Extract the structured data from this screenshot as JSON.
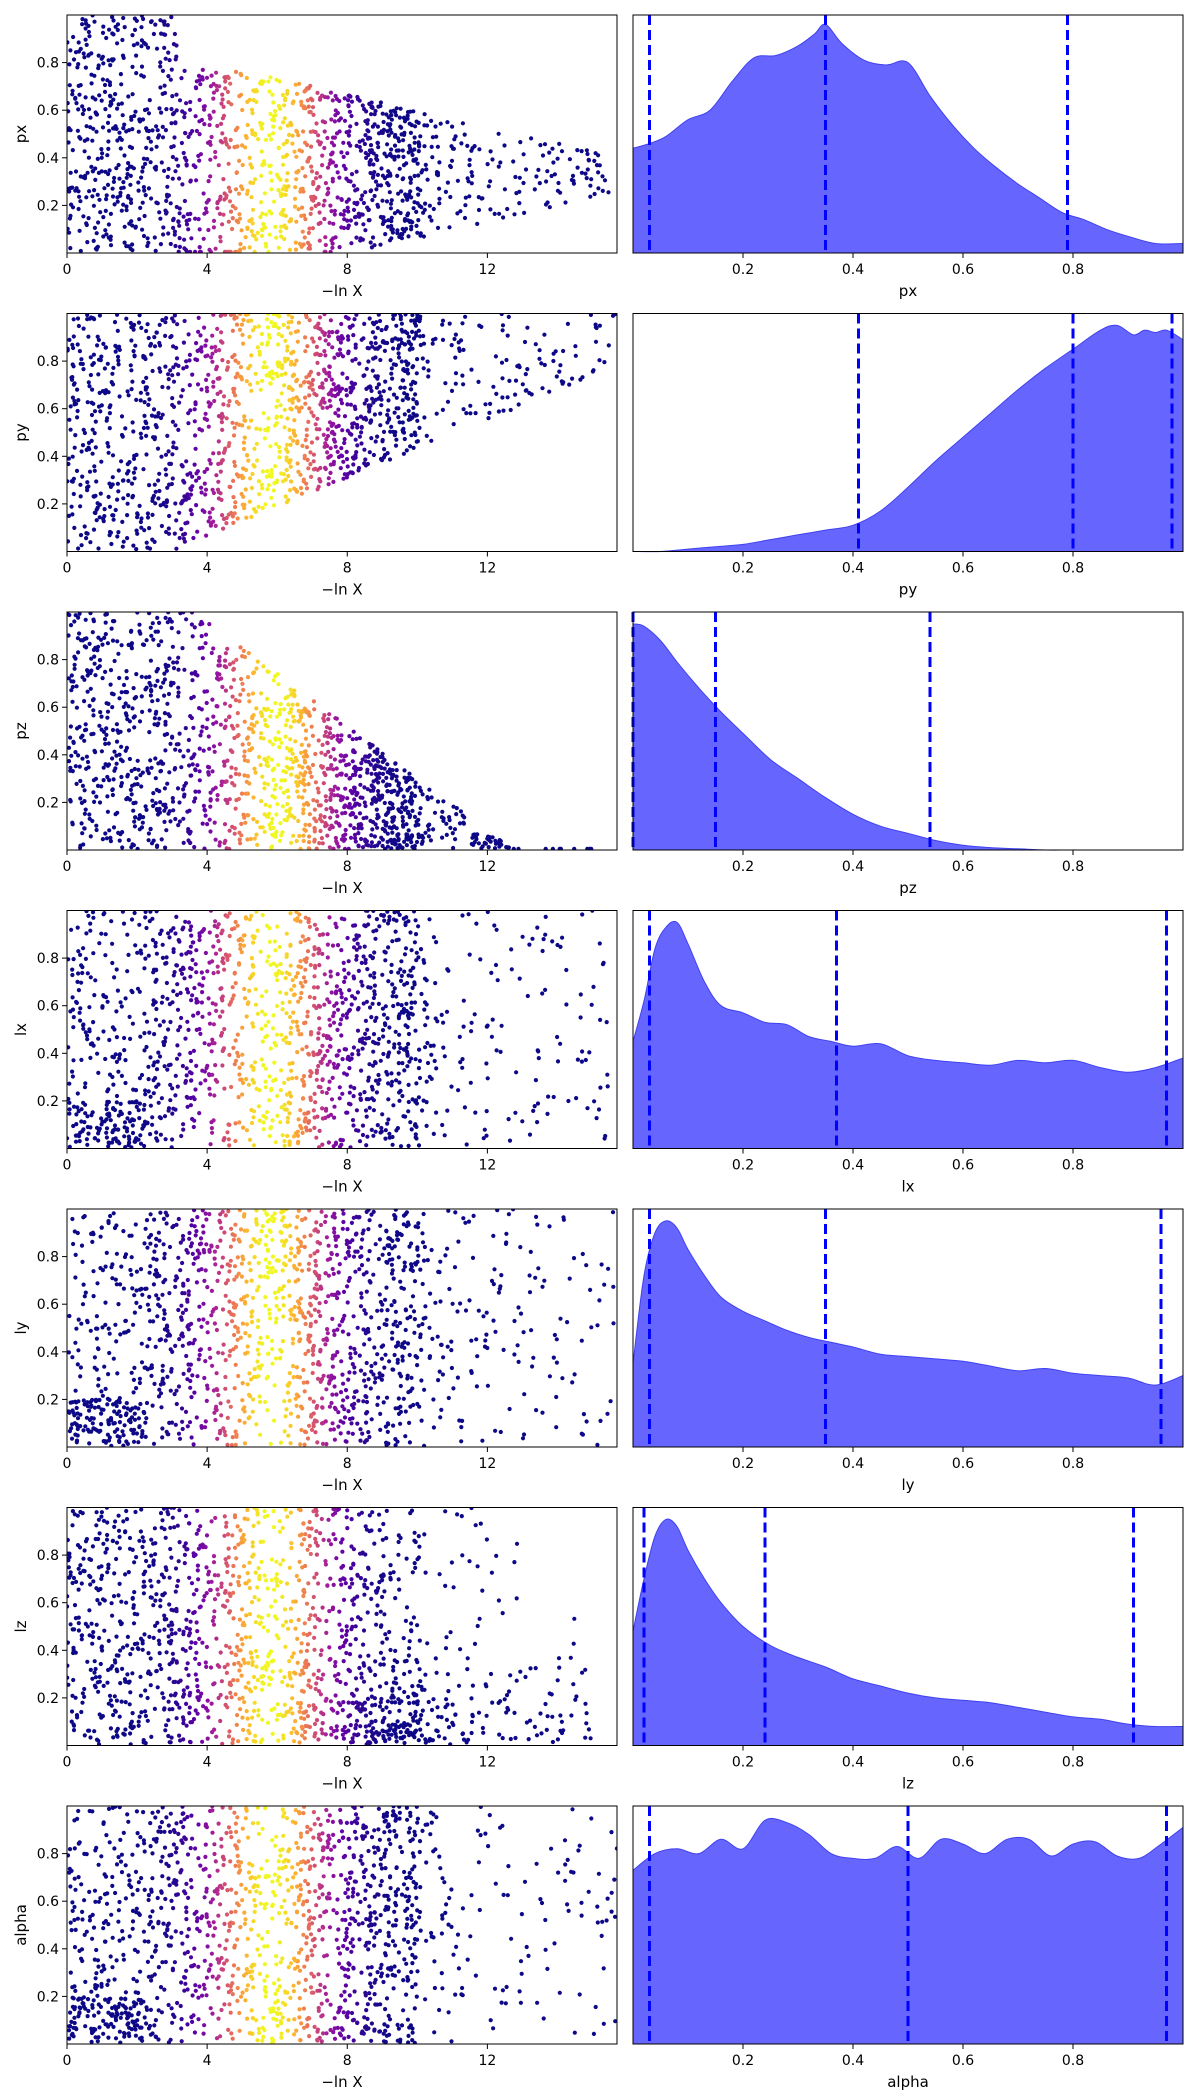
{
  "colors": {
    "kde_fill": "#6666ff",
    "kde_edge": "#4040f0",
    "quantile_line": "#0000ff",
    "trace_colormap": [
      "#0d0887",
      "#5c01a6",
      "#9c179e",
      "#cc4778",
      "#ed7953",
      "#fdb42f",
      "#f0f921"
    ]
  },
  "trace_common": {
    "xlabel": "−ln X",
    "xticks": [
      0,
      4,
      8,
      12
    ],
    "xlim": [
      0,
      15.7
    ],
    "ylim": [
      0,
      1
    ],
    "yticks": [
      0.2,
      0.4,
      0.6,
      0.8
    ]
  },
  "chart_data": [
    {
      "type": "scatter",
      "param": "px",
      "xlabel": "−ln X",
      "ylabel": "px",
      "shape": "cone_center",
      "center": 0.33,
      "width_end": 0.08,
      "tail": 15.5,
      "color_peak": 5.8
    },
    {
      "type": "area",
      "param": "px",
      "xlabel": "px",
      "xticks": [
        0.2,
        0.4,
        0.6,
        0.8
      ],
      "xlim": [
        0,
        1
      ],
      "quantiles": [
        0.03,
        0.35,
        0.79
      ],
      "density": {
        "x": [
          0.0,
          0.03,
          0.06,
          0.1,
          0.14,
          0.18,
          0.22,
          0.26,
          0.3,
          0.33,
          0.35,
          0.38,
          0.42,
          0.46,
          0.5,
          0.54,
          0.58,
          0.62,
          0.66,
          0.7,
          0.74,
          0.78,
          0.82,
          0.86,
          0.9,
          0.95,
          1.0
        ],
        "y": [
          0.44,
          0.46,
          0.49,
          0.56,
          0.6,
          0.72,
          0.82,
          0.83,
          0.87,
          0.92,
          0.96,
          0.88,
          0.81,
          0.79,
          0.8,
          0.66,
          0.54,
          0.44,
          0.36,
          0.29,
          0.23,
          0.17,
          0.14,
          0.1,
          0.07,
          0.04,
          0.04
        ]
      }
    },
    {
      "type": "scatter",
      "param": "py",
      "xlabel": "−ln X",
      "ylabel": "py",
      "shape": "cone_top",
      "center": 0.9,
      "width_end": 0.08,
      "tail": 15.7,
      "color_peak": 5.8
    },
    {
      "type": "area",
      "param": "py",
      "xlabel": "py",
      "xticks": [
        0.2,
        0.4,
        0.6,
        0.8
      ],
      "xlim": [
        0,
        1
      ],
      "quantiles": [
        0.41,
        0.8,
        0.98
      ],
      "density": {
        "x": [
          0.0,
          0.05,
          0.1,
          0.15,
          0.2,
          0.25,
          0.3,
          0.35,
          0.4,
          0.45,
          0.5,
          0.55,
          0.6,
          0.65,
          0.7,
          0.75,
          0.8,
          0.85,
          0.88,
          0.91,
          0.93,
          0.95,
          0.97,
          1.0
        ],
        "y": [
          0.0,
          0.0,
          0.01,
          0.02,
          0.03,
          0.05,
          0.07,
          0.09,
          0.11,
          0.17,
          0.27,
          0.38,
          0.48,
          0.58,
          0.68,
          0.77,
          0.85,
          0.93,
          0.95,
          0.91,
          0.93,
          0.92,
          0.93,
          0.89
        ]
      }
    },
    {
      "type": "scatter",
      "param": "pz",
      "xlabel": "−ln X",
      "ylabel": "pz",
      "shape": "cone_bottom",
      "center": 0.03,
      "width_end": 0.06,
      "tail": 15.0,
      "color_peak": 6.0
    },
    {
      "type": "area",
      "param": "pz",
      "xlabel": "pz",
      "xticks": [
        0.2,
        0.4,
        0.6,
        0.8
      ],
      "xlim": [
        0,
        1
      ],
      "quantiles": [
        0.0,
        0.15,
        0.54
      ],
      "density": {
        "x": [
          0.0,
          0.02,
          0.05,
          0.08,
          0.12,
          0.16,
          0.2,
          0.25,
          0.3,
          0.35,
          0.4,
          0.45,
          0.5,
          0.55,
          0.6,
          0.65,
          0.7,
          0.75,
          0.8,
          0.9,
          1.0
        ],
        "y": [
          0.95,
          0.94,
          0.88,
          0.79,
          0.68,
          0.58,
          0.49,
          0.38,
          0.3,
          0.22,
          0.15,
          0.1,
          0.07,
          0.04,
          0.02,
          0.01,
          0.005,
          0.0,
          0.0,
          0.0,
          0.0
        ]
      }
    },
    {
      "type": "scatter",
      "param": "lx",
      "xlabel": "−ln X",
      "ylabel": "lx",
      "shape": "uniform",
      "tail": 15.5,
      "color_peak": 5.8
    },
    {
      "type": "area",
      "param": "lx",
      "xlabel": "lx",
      "xticks": [
        0.2,
        0.4,
        0.6,
        0.8
      ],
      "xlim": [
        0,
        1
      ],
      "quantiles": [
        0.03,
        0.37,
        0.97
      ],
      "density": {
        "x": [
          0.0,
          0.02,
          0.04,
          0.06,
          0.08,
          0.1,
          0.13,
          0.16,
          0.2,
          0.24,
          0.28,
          0.32,
          0.36,
          0.4,
          0.45,
          0.5,
          0.55,
          0.6,
          0.65,
          0.7,
          0.75,
          0.8,
          0.85,
          0.9,
          0.95,
          1.0
        ],
        "y": [
          0.45,
          0.62,
          0.84,
          0.93,
          0.95,
          0.86,
          0.7,
          0.6,
          0.57,
          0.53,
          0.52,
          0.47,
          0.45,
          0.43,
          0.44,
          0.39,
          0.37,
          0.36,
          0.35,
          0.37,
          0.36,
          0.37,
          0.34,
          0.32,
          0.34,
          0.38
        ]
      }
    },
    {
      "type": "scatter",
      "param": "ly",
      "xlabel": "−ln X",
      "ylabel": "ly",
      "shape": "uniform",
      "tail": 15.7,
      "color_peak": 5.8
    },
    {
      "type": "area",
      "param": "ly",
      "xlabel": "ly",
      "xticks": [
        0.2,
        0.4,
        0.6,
        0.8
      ],
      "xlim": [
        0,
        1
      ],
      "quantiles": [
        0.03,
        0.35,
        0.96
      ],
      "density": {
        "x": [
          0.0,
          0.02,
          0.04,
          0.06,
          0.08,
          0.1,
          0.13,
          0.16,
          0.2,
          0.24,
          0.28,
          0.32,
          0.36,
          0.4,
          0.45,
          0.5,
          0.55,
          0.6,
          0.65,
          0.7,
          0.75,
          0.8,
          0.85,
          0.9,
          0.95,
          1.0
        ],
        "y": [
          0.35,
          0.72,
          0.9,
          0.95,
          0.92,
          0.83,
          0.72,
          0.63,
          0.57,
          0.53,
          0.49,
          0.46,
          0.44,
          0.42,
          0.39,
          0.38,
          0.37,
          0.36,
          0.34,
          0.32,
          0.33,
          0.31,
          0.3,
          0.29,
          0.26,
          0.3
        ]
      }
    },
    {
      "type": "scatter",
      "param": "lz",
      "xlabel": "−ln X",
      "ylabel": "lz",
      "shape": "lz",
      "tail": 15.0,
      "color_peak": 5.8
    },
    {
      "type": "area",
      "param": "lz",
      "xlabel": "lz",
      "xticks": [
        0.2,
        0.4,
        0.6,
        0.8
      ],
      "xlim": [
        0,
        1
      ],
      "quantiles": [
        0.02,
        0.24,
        0.91
      ],
      "density": {
        "x": [
          0.0,
          0.02,
          0.04,
          0.06,
          0.08,
          0.1,
          0.13,
          0.16,
          0.2,
          0.25,
          0.3,
          0.35,
          0.4,
          0.45,
          0.5,
          0.55,
          0.6,
          0.65,
          0.7,
          0.75,
          0.8,
          0.85,
          0.9,
          0.95,
          1.0
        ],
        "y": [
          0.48,
          0.7,
          0.88,
          0.95,
          0.92,
          0.82,
          0.7,
          0.6,
          0.5,
          0.42,
          0.37,
          0.33,
          0.28,
          0.25,
          0.22,
          0.2,
          0.19,
          0.18,
          0.16,
          0.14,
          0.12,
          0.11,
          0.09,
          0.08,
          0.08
        ]
      }
    },
    {
      "type": "scatter",
      "param": "alpha",
      "xlabel": "−ln X",
      "ylabel": "alpha",
      "shape": "uniform",
      "tail": 15.7,
      "color_peak": 5.8
    },
    {
      "type": "area",
      "param": "alpha",
      "xlabel": "alpha",
      "xticks": [
        0.2,
        0.4,
        0.6,
        0.8
      ],
      "xlim": [
        0,
        1
      ],
      "quantiles": [
        0.03,
        0.5,
        0.97
      ],
      "density": {
        "x": [
          0.0,
          0.04,
          0.08,
          0.12,
          0.16,
          0.2,
          0.24,
          0.28,
          0.32,
          0.36,
          0.4,
          0.44,
          0.48,
          0.52,
          0.56,
          0.6,
          0.64,
          0.68,
          0.72,
          0.76,
          0.8,
          0.84,
          0.88,
          0.92,
          0.96,
          1.0
        ],
        "y": [
          0.73,
          0.8,
          0.82,
          0.8,
          0.86,
          0.82,
          0.94,
          0.93,
          0.88,
          0.8,
          0.78,
          0.78,
          0.83,
          0.78,
          0.86,
          0.84,
          0.8,
          0.86,
          0.86,
          0.79,
          0.84,
          0.85,
          0.79,
          0.78,
          0.84,
          0.91
        ]
      }
    }
  ]
}
